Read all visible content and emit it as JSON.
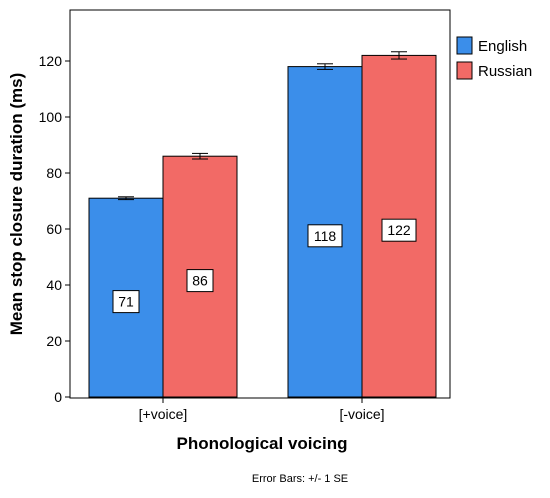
{
  "chart_data": {
    "type": "bar",
    "categories": [
      "[+voice]",
      "[-voice]"
    ],
    "series": [
      {
        "name": "English",
        "color": "#3b8eea",
        "values": [
          71,
          118
        ],
        "se": [
          0.5,
          1.0
        ],
        "labels": [
          "71",
          "118"
        ]
      },
      {
        "name": "Russian",
        "color": "#f26a66",
        "values": [
          86,
          122
        ],
        "se": [
          1.0,
          1.3
        ],
        "labels": [
          "86",
          "122"
        ]
      }
    ],
    "title": "",
    "xlabel": "Phonological voicing",
    "ylabel": "Mean stop closure duration (ms)",
    "ylim": [
      0,
      130
    ],
    "yticks": [
      0,
      20,
      40,
      60,
      80,
      100,
      120
    ],
    "grid": false,
    "legend_position": "right",
    "error_bar_note": "Error Bars: +/- 1 SE"
  }
}
